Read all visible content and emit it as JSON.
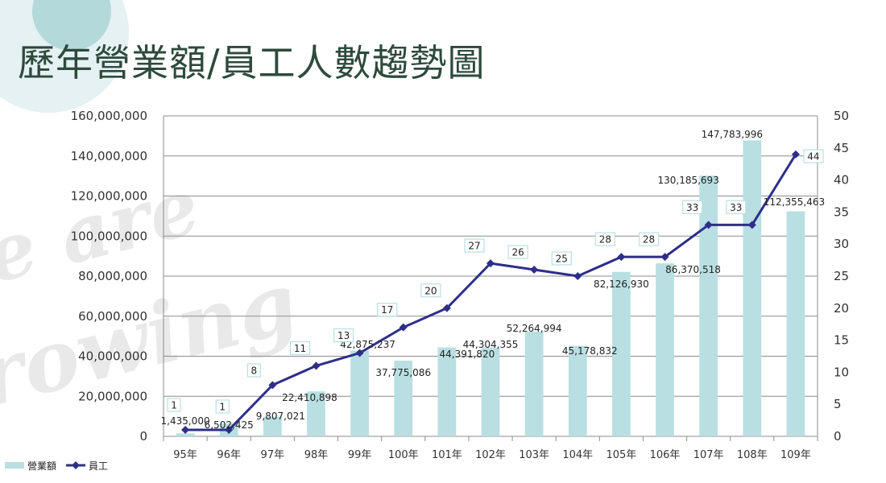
{
  "title": "歷年營業額/員工人數趨勢圖",
  "watermark_lines": [
    "e are",
    "rowing"
  ],
  "colors": {
    "bar": "#b9dfe2",
    "line": "#2e2e8a",
    "title": "#2e4a3c"
  },
  "chart_data": {
    "type": "bar",
    "categories": [
      "95年",
      "96年",
      "97年",
      "98年",
      "99年",
      "100年",
      "101年",
      "102年",
      "103年",
      "104年",
      "105年",
      "106年",
      "107年",
      "108年",
      "109年"
    ],
    "series": [
      {
        "name": "營業額",
        "type": "bar",
        "axis": "left",
        "values": [
          1435000,
          6502425,
          9807021,
          22410898,
          42875237,
          37775086,
          44391820,
          44304355,
          52264994,
          45178832,
          82126930,
          86370518,
          130185693,
          147783996,
          112355463
        ],
        "labels": [
          "1,435,000",
          "6,502,425",
          "9,807,021",
          "22,410,898",
          "42,875,237",
          "37,775,086",
          "44,391,820",
          "44,304,355",
          "52,264,994",
          "45,178,832",
          "82,126,930",
          "86,370,518",
          "130,185,693",
          "147,783,996",
          "112,355,463"
        ]
      },
      {
        "name": "員工",
        "type": "line",
        "axis": "right",
        "marker": "diamond",
        "values": [
          1,
          1,
          8,
          11,
          13,
          17,
          20,
          27,
          26,
          25,
          28,
          28,
          33,
          33,
          44
        ]
      }
    ],
    "y_left": {
      "min": 0,
      "max": 160000000,
      "ticks": [
        "0",
        "20,000,000",
        "40,000,000",
        "60,000,000",
        "80,000,000",
        "100,000,000",
        "120,000,000",
        "140,000,000",
        "160,000,000"
      ]
    },
    "y_right": {
      "min": 0,
      "max": 50,
      "ticks": [
        "0",
        "5",
        "10",
        "15",
        "20",
        "25",
        "30",
        "35",
        "40",
        "45",
        "50"
      ]
    },
    "grid": true,
    "legend_position": "bottom-left"
  }
}
